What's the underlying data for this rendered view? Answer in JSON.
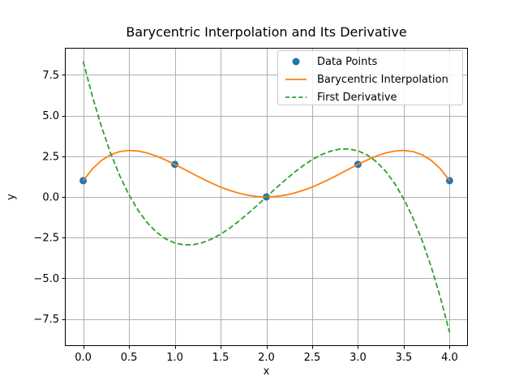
{
  "chart_data": {
    "type": "line",
    "title": "Barycentric Interpolation and Its Derivative",
    "xlabel": "x",
    "ylabel": "y",
    "xlim": [
      -0.2,
      4.2
    ],
    "ylim": [
      -9.1667,
      9.1667
    ],
    "grid": true,
    "legend_position": "upper right",
    "xticks": {
      "values": [
        0,
        0.5,
        1,
        1.5,
        2,
        2.5,
        3,
        3.5,
        4
      ],
      "labels": [
        "0.0",
        "0.5",
        "1.0",
        "1.5",
        "2.0",
        "2.5",
        "3.0",
        "3.5",
        "4.0"
      ]
    },
    "yticks": {
      "values": [
        -7.5,
        -5,
        -2.5,
        0,
        2.5,
        5,
        7.5
      ],
      "labels": [
        "−7.5",
        "−5.0",
        "−2.5",
        "0.0",
        "2.5",
        "5.0",
        "7.5"
      ]
    },
    "series": [
      {
        "name": "Data Points",
        "type": "scatter",
        "marker": "circle",
        "color": "#1f77b4",
        "points": [
          [
            0,
            1
          ],
          [
            1,
            2
          ],
          [
            2,
            0
          ],
          [
            3,
            2
          ],
          [
            4,
            1
          ]
        ]
      },
      {
        "name": "Barycentric Interpolation",
        "type": "line",
        "style": "solid",
        "color": "#ff7f0e",
        "x": [
          0,
          0.1,
          0.2,
          0.3,
          0.4,
          0.5,
          0.6,
          0.7,
          0.8,
          0.9,
          1,
          1.1,
          1.2,
          1.3,
          1.4,
          1.5,
          1.6,
          1.7,
          1.8,
          1.9,
          2,
          2.1,
          2.2,
          2.3,
          2.4,
          2.5,
          2.6,
          2.7,
          2.8,
          2.9,
          3,
          3.1,
          3.2,
          3.3,
          3.4,
          3.5,
          3.6,
          3.7,
          3.8,
          3.9,
          4
        ],
        "y": [
          1,
          1.724,
          2.246,
          2.594,
          2.79,
          2.859,
          2.822,
          2.7,
          2.51,
          2.272,
          2,
          1.71,
          1.414,
          1.126,
          0.854,
          0.609,
          0.398,
          0.228,
          0.102,
          0.026,
          0,
          0.026,
          0.102,
          0.228,
          0.398,
          0.609,
          0.854,
          1.126,
          1.414,
          1.71,
          2,
          2.272,
          2.51,
          2.7,
          2.822,
          2.859,
          2.79,
          2.594,
          2.246,
          1.724,
          1
        ]
      },
      {
        "name": "First Derivative",
        "type": "line",
        "style": "dashed",
        "color": "#2ca02c",
        "x": [
          0,
          0.1,
          0.2,
          0.3,
          0.4,
          0.5,
          0.6,
          0.7,
          0.8,
          0.9,
          1,
          1.1,
          1.2,
          1.3,
          1.4,
          1.5,
          1.6,
          1.7,
          1.8,
          1.9,
          2,
          2.1,
          2.2,
          2.3,
          2.4,
          2.5,
          2.6,
          2.7,
          2.8,
          2.9,
          3,
          3.1,
          3.2,
          3.3,
          3.4,
          3.5,
          3.6,
          3.7,
          3.8,
          3.9,
          4
        ],
        "y": [
          8.333,
          6.188,
          4.308,
          2.68,
          1.291,
          0.125,
          -0.831,
          -1.59,
          -2.168,
          -2.578,
          -2.833,
          -2.949,
          -2.939,
          -2.816,
          -2.595,
          -2.292,
          -1.917,
          -1.486,
          -1.015,
          -0.518,
          0,
          0.518,
          1.015,
          1.486,
          1.917,
          2.292,
          2.595,
          2.816,
          2.939,
          2.949,
          2.833,
          2.578,
          2.168,
          1.59,
          0.831,
          -0.125,
          -1.291,
          -2.68,
          -4.308,
          -6.188,
          -8.333
        ]
      }
    ],
    "colors": {
      "background": "#ffffff",
      "grid": "#b0b0b0",
      "spine": "#000000",
      "tick_label": "#000000",
      "legend_border": "#c9c9c9"
    }
  }
}
